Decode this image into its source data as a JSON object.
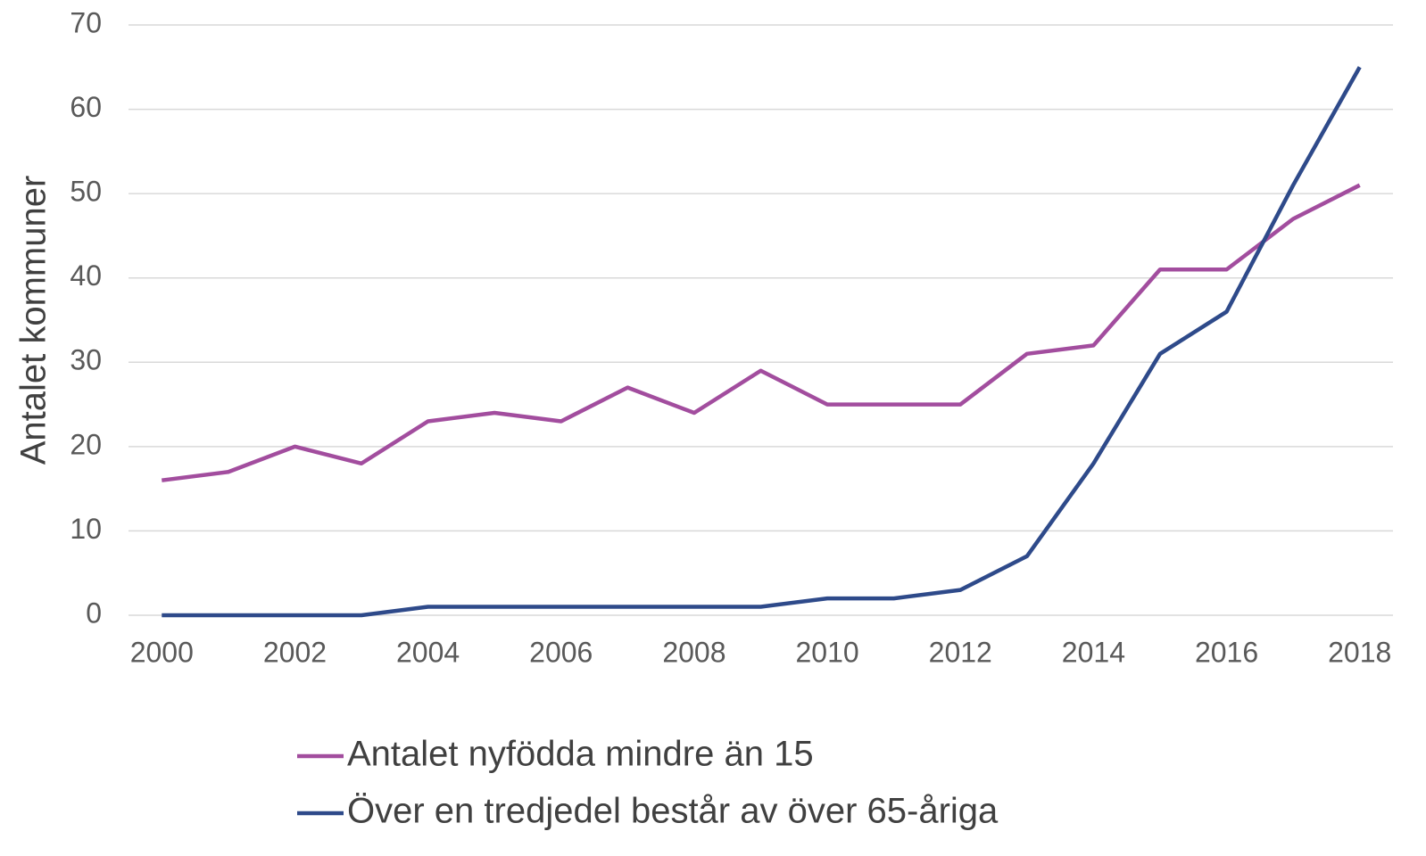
{
  "chart_data": {
    "type": "line",
    "ylabel": "Antalet kommuner",
    "x": [
      2000,
      2001,
      2002,
      2003,
      2004,
      2005,
      2006,
      2007,
      2008,
      2009,
      2010,
      2011,
      2012,
      2013,
      2014,
      2015,
      2016,
      2017,
      2018
    ],
    "series": [
      {
        "name": "Antalet nyfödda mindre än 15",
        "color": "#a24d9e",
        "values": [
          16,
          17,
          20,
          18,
          23,
          24,
          23,
          27,
          24,
          29,
          25,
          25,
          25,
          31,
          32,
          41,
          41,
          47,
          51
        ]
      },
      {
        "name": "Över en tredjedel består av över 65-åriga",
        "color": "#2e4a8a",
        "values": [
          0,
          0,
          0,
          0,
          1,
          1,
          1,
          1,
          1,
          1,
          2,
          2,
          3,
          7,
          18,
          31,
          36,
          51,
          65
        ]
      }
    ],
    "xlim": [
      1999.5,
      2018.5
    ],
    "xticks": [
      2000,
      2002,
      2004,
      2006,
      2008,
      2010,
      2012,
      2014,
      2016,
      2018
    ],
    "ylim": [
      0,
      70
    ],
    "yticks": [
      0,
      10,
      20,
      30,
      40,
      50,
      60,
      70
    ],
    "grid": true,
    "legend": "bottom"
  }
}
